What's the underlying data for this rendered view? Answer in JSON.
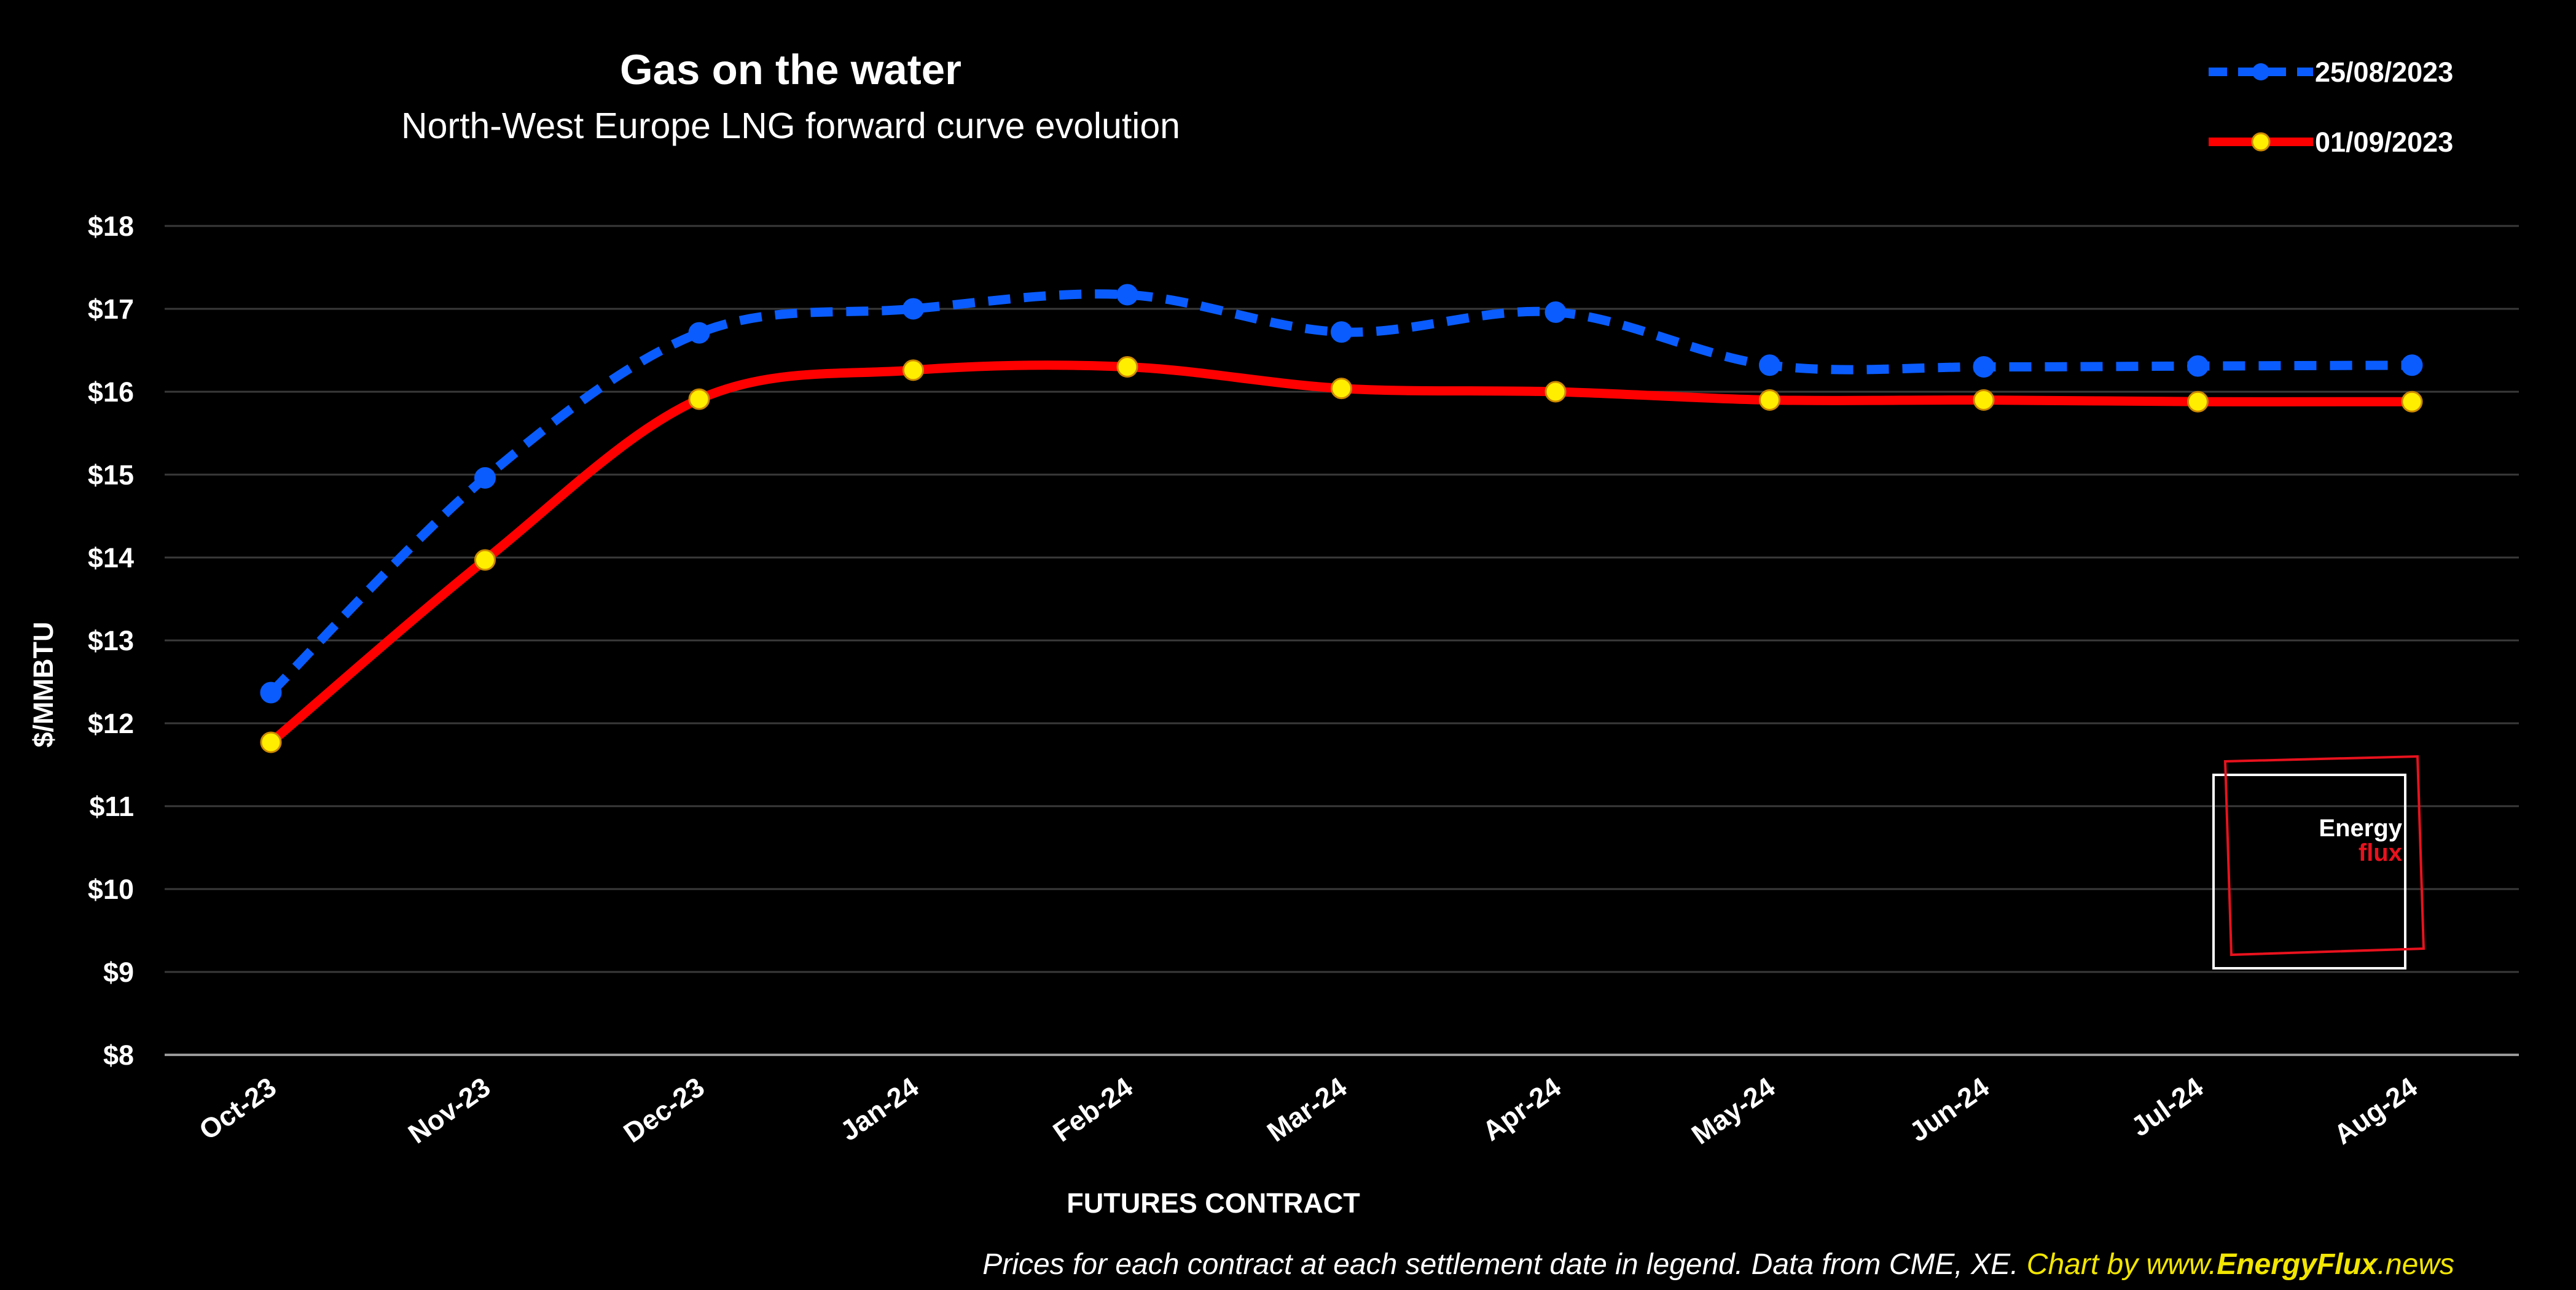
{
  "chart_data": {
    "type": "line",
    "title": "Gas on the water",
    "subtitle": "North-West Europe LNG forward curve evolution",
    "xlabel": "FUTURES CONTRACT",
    "ylabel": "$/MMBTU",
    "ylim": [
      8,
      18
    ],
    "yticks": [
      "$8",
      "$9",
      "$10",
      "$11",
      "$12",
      "$13",
      "$14",
      "$15",
      "$16",
      "$17",
      "$18"
    ],
    "categories": [
      "Oct-23",
      "Nov-23",
      "Dec-23",
      "Jan-24",
      "Feb-24",
      "Mar-24",
      "Apr-24",
      "May-24",
      "Jun-24",
      "Jul-24",
      "Aug-24"
    ],
    "grid": true,
    "legend_position": "top-right",
    "series": [
      {
        "name": "25/08/2023",
        "color": "#0a5cff",
        "style": "dashed",
        "marker_color": "#0a5cff",
        "values": [
          12.37,
          14.96,
          16.71,
          17.0,
          17.17,
          16.72,
          16.96,
          16.32,
          16.3,
          16.31,
          16.32
        ]
      },
      {
        "name": "01/09/2023",
        "color": "#ff0000",
        "style": "solid",
        "marker_color": "#ffee00",
        "values": [
          11.77,
          13.97,
          15.91,
          16.26,
          16.3,
          16.04,
          16.0,
          15.9,
          15.9,
          15.88,
          15.88
        ]
      }
    ]
  },
  "footnote": {
    "main": "Prices for each contract at each settlement date in legend. Data from CME, XE.  ",
    "credit_prefix": "Chart by www.",
    "credit_brand": "EnergyFlux",
    "credit_suffix": ".news"
  },
  "logo": {
    "line1": "Energy",
    "line2": "flux"
  },
  "colors": {
    "background": "#000000",
    "grid": "#3a3a3a",
    "axis": "#9a9a9a",
    "credit": "#f2e600"
  }
}
